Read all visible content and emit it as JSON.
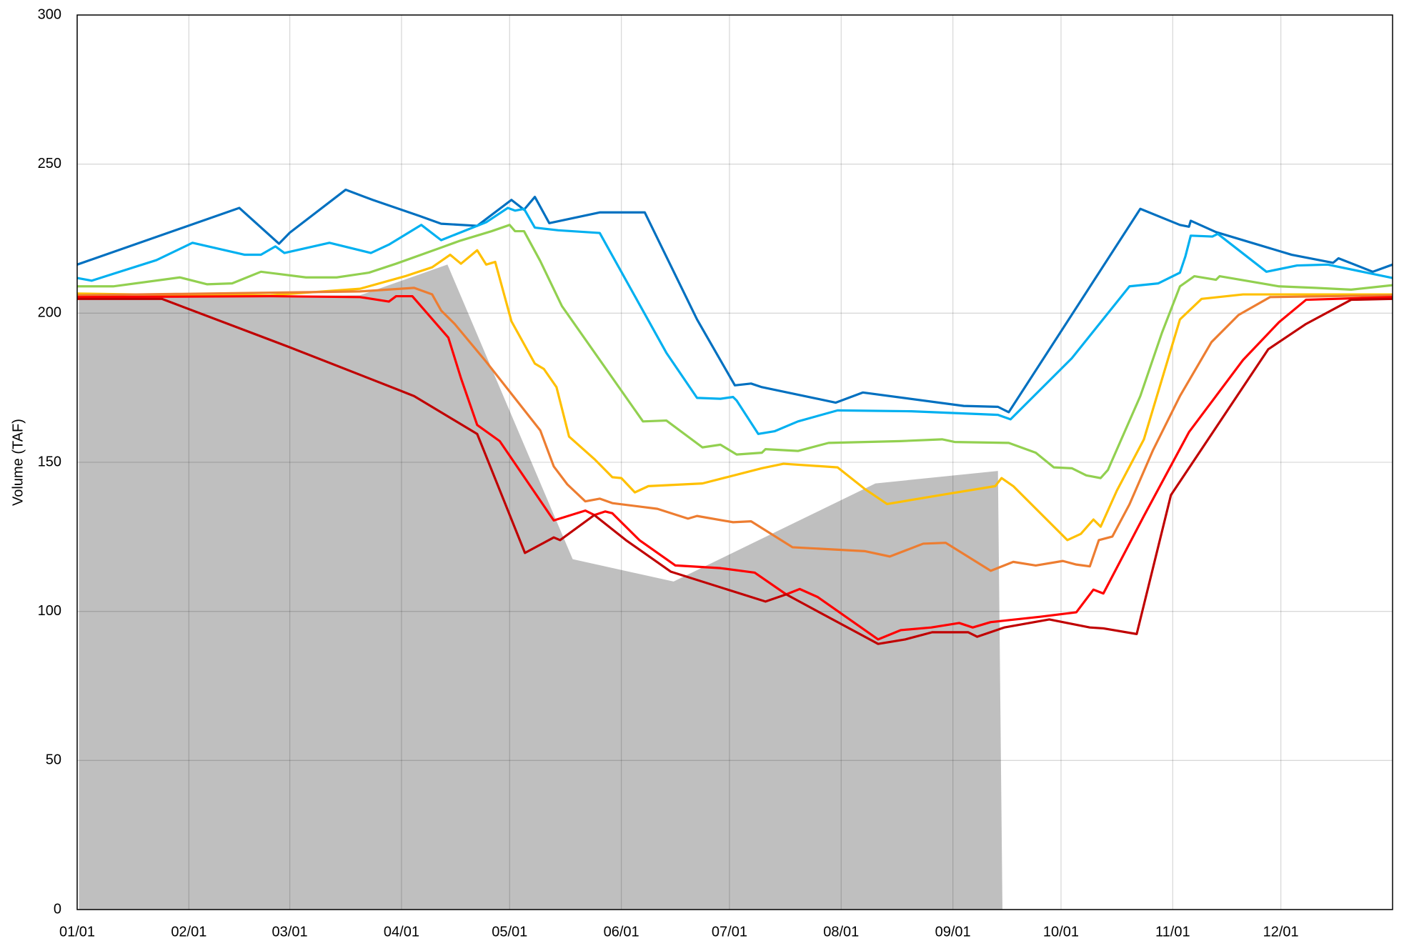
{
  "chart_data": {
    "type": "line",
    "y_label": "Volume (TAF)",
    "xlim": [
      0,
      365
    ],
    "xticks": [
      {
        "value": 0,
        "label": "01/01"
      },
      {
        "value": 31,
        "label": "02/01"
      },
      {
        "value": 59,
        "label": "03/01"
      },
      {
        "value": 90,
        "label": "04/01"
      },
      {
        "value": 120,
        "label": "05/01"
      },
      {
        "value": 151,
        "label": "06/01"
      },
      {
        "value": 181,
        "label": "07/01"
      },
      {
        "value": 212,
        "label": "08/01"
      },
      {
        "value": 243,
        "label": "09/01"
      },
      {
        "value": 273,
        "label": "10/01"
      },
      {
        "value": 304,
        "label": "11/01"
      },
      {
        "value": 334,
        "label": "12/01"
      }
    ],
    "ylim": [
      0,
      300
    ],
    "yticks": [
      0,
      50,
      100,
      150,
      200,
      250,
      300
    ],
    "grid": true,
    "series": [
      {
        "type": "area",
        "color": "#bfbfbf",
        "x": [
          0.5,
          78.5,
          102.75,
          137.5,
          165.5,
          221.5,
          255.5,
          256.75
        ],
        "values": [
          205.4,
          206,
          216.3,
          117.5,
          110,
          142.9,
          147.1,
          0
        ]
      },
      {
        "color": "#0070c0",
        "x": [
          0,
          45,
          56,
          59,
          74.5,
          82,
          95,
          101,
          111,
          120.5,
          124,
          127,
          131,
          145,
          157.5,
          172,
          182.5,
          187,
          190,
          210.5,
          218,
          246,
          255.5,
          258.5,
          295,
          306,
          308.5,
          309,
          316,
          337,
          348.5,
          350,
          359.5,
          365
        ],
        "values": [
          216.3,
          235.3,
          223.3,
          227,
          241.4,
          238,
          232.6,
          230,
          229.3,
          238,
          234.7,
          239,
          230.2,
          233.8,
          233.8,
          197.9,
          175.8,
          176.4,
          175.2,
          170,
          173.4,
          168.9,
          168.6,
          166.8,
          235,
          229.6,
          229,
          231,
          227.2,
          219.6,
          216.9,
          218.4,
          213.9,
          216.3
        ]
      },
      {
        "color": "#00b0f0",
        "x": [
          0,
          4,
          22,
          32,
          46.5,
          51,
          55,
          57.5,
          70,
          81.5,
          86.5,
          95.5,
          101,
          113.5,
          119.5,
          121.5,
          124,
          127,
          133.5,
          145,
          163.5,
          172,
          178.5,
          182,
          183,
          189,
          193.5,
          200,
          211,
          231.5,
          255.5,
          259,
          276,
          292,
          300,
          306,
          307.5,
          309,
          315,
          316.5,
          330,
          338.5,
          347,
          365
        ],
        "values": [
          211.8,
          210.9,
          217.8,
          223.6,
          219.6,
          219.6,
          222.4,
          220.2,
          223.6,
          220.2,
          223,
          229.6,
          224.5,
          230.5,
          235.3,
          234.4,
          235,
          228.7,
          227.8,
          226.9,
          186.7,
          171.6,
          171.3,
          171.9,
          170.7,
          159.5,
          160.4,
          163.7,
          167.4,
          167.1,
          165.9,
          164.4,
          184.9,
          209,
          210,
          213.6,
          219,
          226,
          225.7,
          226.6,
          213.9,
          216,
          216.3,
          211.8
        ]
      },
      {
        "color": "#92d050",
        "x": [
          0,
          10,
          28.5,
          36,
          43,
          51,
          63.5,
          72,
          81,
          88.5,
          101,
          106,
          115,
          120,
          121.5,
          124,
          128.5,
          134.5,
          157,
          163.5,
          173.5,
          178.5,
          183,
          190,
          191,
          200,
          208.5,
          218.5,
          228.5,
          240,
          243.5,
          258.5,
          266,
          271,
          276,
          280,
          284,
          286,
          295,
          301,
          306,
          310,
          316,
          317,
          333.5,
          343.5,
          353.5,
          365
        ],
        "values": [
          209,
          209,
          212,
          209.7,
          210,
          213.9,
          212,
          212,
          213.6,
          216.6,
          222,
          224.2,
          227.5,
          229.6,
          227.5,
          227.5,
          217.5,
          202.4,
          163.7,
          164,
          155,
          155.9,
          152.6,
          153.2,
          154.4,
          153.8,
          156.5,
          156.8,
          157.1,
          157.7,
          156.8,
          156.5,
          153.2,
          148.3,
          148,
          145.6,
          144.7,
          147.4,
          172.2,
          193.4,
          209,
          212.4,
          211.2,
          212.4,
          209,
          208.5,
          207.9,
          209.4
        ]
      },
      {
        "color": "#ffc000",
        "x": [
          0,
          16,
          53.5,
          78.5,
          91,
          98.5,
          103.5,
          106.5,
          111,
          113.5,
          116,
          120.5,
          127,
          129.5,
          133,
          136.5,
          143.5,
          148.5,
          151,
          154.75,
          158.5,
          173.5,
          190,
          196,
          211,
          218.5,
          224.75,
          241,
          254.75,
          256.5,
          259.75,
          274.75,
          278.5,
          282,
          284,
          288.5,
          296,
          306,
          312,
          323.5,
          365
        ],
        "values": [
          206.6,
          206.3,
          206,
          208.2,
          212.4,
          215.4,
          219.6,
          216.6,
          221.1,
          216.3,
          217.2,
          197.3,
          183.1,
          181.3,
          175.2,
          158.6,
          151.1,
          145,
          144.7,
          139.9,
          142,
          142.9,
          148,
          149.5,
          148.3,
          141.1,
          136,
          139.3,
          142,
          144.7,
          142,
          123.9,
          126,
          130.8,
          128.4,
          140.5,
          157.7,
          197.9,
          204.8,
          206.3,
          206.3
        ]
      },
      {
        "color": "#ed7d31",
        "x": [
          0,
          78.5,
          93.5,
          98.5,
          101,
          104.75,
          113.5,
          121,
          128.5,
          132.25,
          136,
          141,
          145,
          148.5,
          161,
          169.5,
          172,
          182,
          187,
          198.5,
          218.5,
          225.5,
          234.75,
          241,
          253.5,
          259.75,
          266,
          273.5,
          277.25,
          281,
          283.5,
          287.25,
          292,
          298.5,
          306,
          314.75,
          322.25,
          331,
          365
        ],
        "values": [
          206,
          207.3,
          208.5,
          206.3,
          200.9,
          196.4,
          183.7,
          172.2,
          160.7,
          148.6,
          142.6,
          136.9,
          137.8,
          136.3,
          134.4,
          131.1,
          132,
          129.9,
          130.2,
          121.5,
          120.2,
          118.4,
          122.7,
          123,
          113.6,
          116.6,
          115.4,
          116.9,
          115.7,
          115.1,
          123.9,
          125.1,
          135.9,
          154,
          172.2,
          190.3,
          199.4,
          205.4,
          206
        ]
      },
      {
        "color": "#ff0000",
        "x": [
          0,
          53.5,
          78.5,
          86.5,
          88.5,
          93,
          103,
          106.5,
          111,
          117.25,
          132.25,
          141,
          143.5,
          146.5,
          148.5,
          156,
          166,
          178.5,
          188,
          196.75,
          200.5,
          205.5,
          222.25,
          228.5,
          237,
          244.75,
          248.5,
          253.5,
          267.25,
          277.25,
          282,
          284.75,
          296,
          308.5,
          323.5,
          333.5,
          341,
          365
        ],
        "values": [
          205.4,
          205.7,
          205.4,
          203.9,
          205.7,
          205.7,
          191.8,
          178.2,
          162.5,
          157.1,
          130.5,
          133.8,
          132.3,
          133.5,
          132.9,
          123.9,
          115.4,
          114.5,
          113,
          105.7,
          107.5,
          104.8,
          90.6,
          93.7,
          94.6,
          96.1,
          94.6,
          96.4,
          98.2,
          99.7,
          107.3,
          106,
          132,
          160.1,
          184.3,
          197,
          204.5,
          205.4
        ]
      },
      {
        "color": "#c00000",
        "x": [
          0,
          23.5,
          58.5,
          88.5,
          93.5,
          111,
          124.25,
          132.25,
          134,
          143.5,
          152.25,
          164.75,
          191,
          196.75,
          202.25,
          222.25,
          229.75,
          237.25,
          247.25,
          249.75,
          257.25,
          269.75,
          281,
          284.75,
          294,
          303.5,
          330.5,
          341,
          353.5,
          365
        ],
        "values": [
          204.8,
          204.8,
          188.8,
          174.6,
          172.2,
          159.5,
          119.6,
          124.8,
          123.9,
          132.3,
          123.9,
          113.3,
          103.3,
          105.7,
          102.1,
          89.1,
          90.6,
          93,
          93,
          91.5,
          94.6,
          97.3,
          94.6,
          94.3,
          92.4,
          139,
          187.9,
          196.4,
          204.5,
          204.8
        ]
      }
    ]
  }
}
